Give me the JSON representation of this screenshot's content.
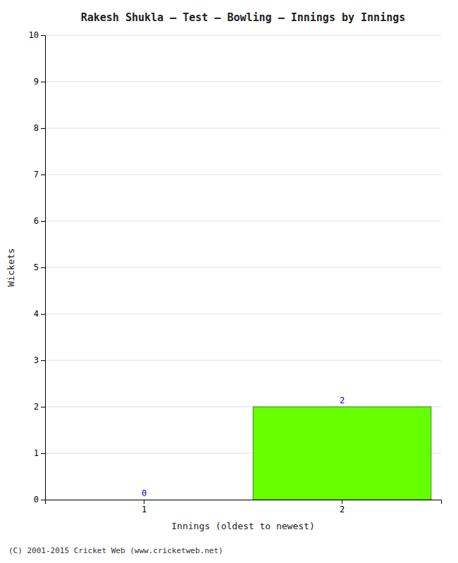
{
  "chart_data": {
    "type": "bar",
    "title": "Rakesh Shukla – Test – Bowling – Innings by Innings",
    "xlabel": "Innings (oldest to newest)",
    "ylabel": "Wickets",
    "categories": [
      "1",
      "2"
    ],
    "values": [
      0,
      2
    ],
    "color": "#66ff00",
    "ylim": [
      0,
      10
    ],
    "yticks": [
      0,
      1,
      2,
      3,
      4,
      5,
      6,
      7,
      8,
      9,
      10
    ],
    "grid": true,
    "data_labels": true,
    "annotations": [
      "(C) 2001-2015 Cricket Web (www.cricketweb.net)"
    ]
  }
}
